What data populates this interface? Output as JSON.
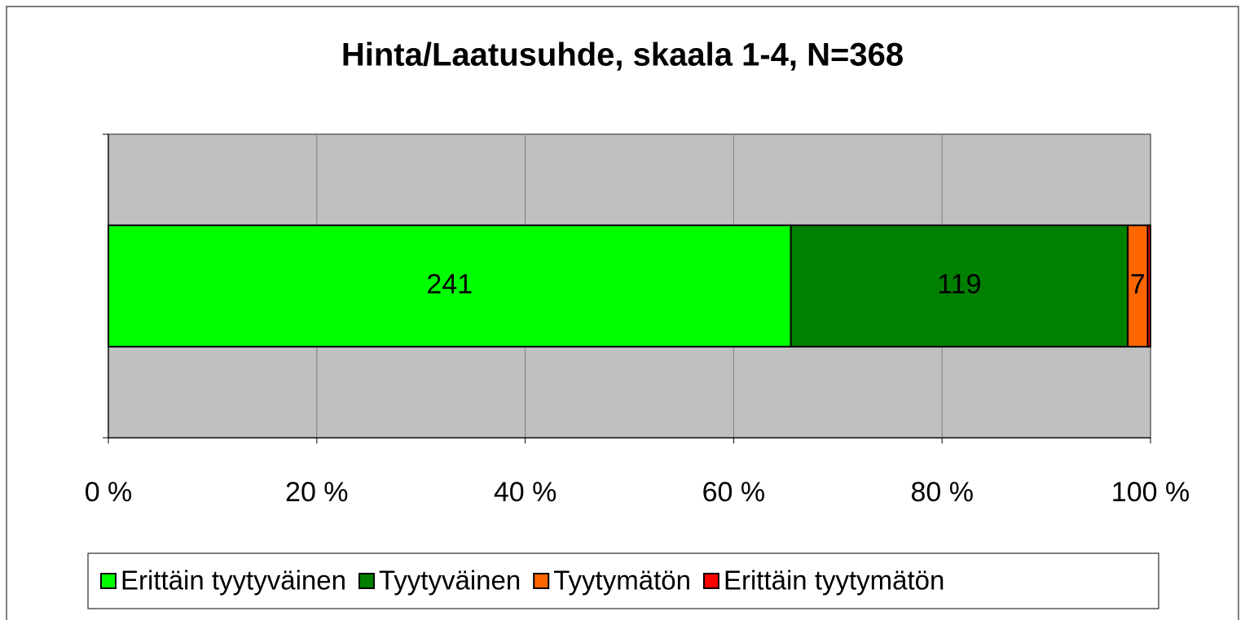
{
  "chart_data": {
    "type": "bar",
    "orientation": "horizontal",
    "stacked": "percent",
    "title": "Hinta/Laatusuhde, skaala 1-4, N=368",
    "categories": [
      null
    ],
    "series": [
      {
        "name": "Erittäin tyytyväinen",
        "color": "#00ff00",
        "values": [
          241
        ]
      },
      {
        "name": "Tyytyväinen",
        "color": "#008000",
        "values": [
          119
        ]
      },
      {
        "name": "Tyytymätön",
        "color": "#ff6600",
        "values": [
          7
        ]
      },
      {
        "name": "Erittäin tyytymätön",
        "color": "#ff0000",
        "values": [
          1
        ]
      }
    ],
    "xlim": [
      0,
      100
    ],
    "xticks": [
      {
        "value": 0,
        "label": "0 %"
      },
      {
        "value": 20,
        "label": "20 %"
      },
      {
        "value": 40,
        "label": "40 %"
      },
      {
        "value": 60,
        "label": "60 %"
      },
      {
        "value": 80,
        "label": "80 %"
      },
      {
        "value": 100,
        "label": "100 %"
      }
    ],
    "grid": true,
    "legend": "bottom"
  }
}
